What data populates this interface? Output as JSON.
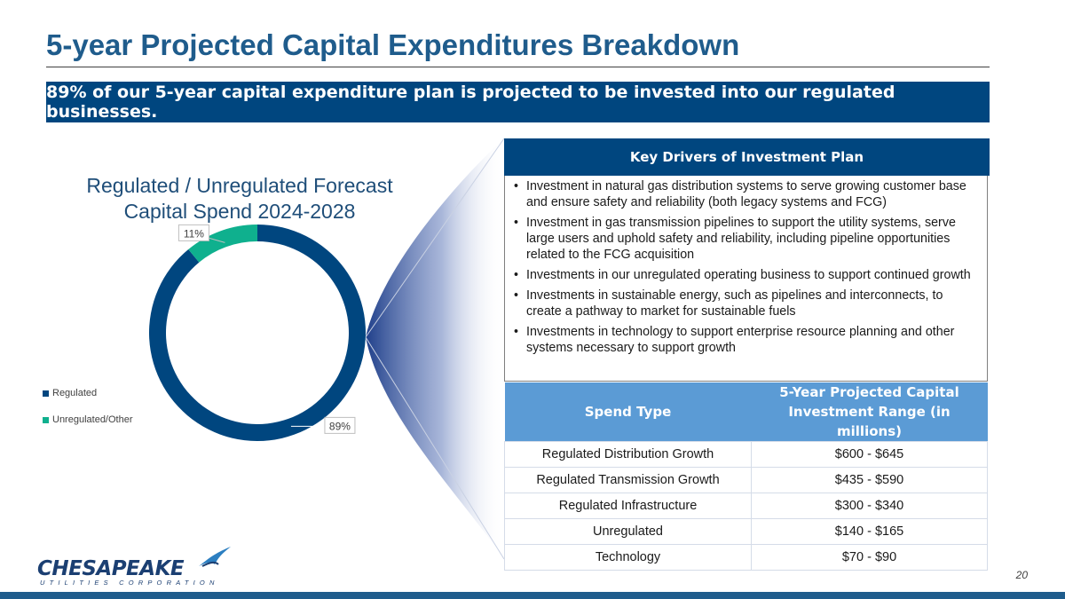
{
  "slide": {
    "title": "5-year Projected Capital Expenditures Breakdown",
    "banner": "89% of our 5-year capital expenditure plan is projected to be invested into our regulated businesses.",
    "page_number": "20"
  },
  "chart_data": {
    "type": "pie",
    "donut": true,
    "title": "Regulated / Unregulated Forecast Capital Spend 2024-2028",
    "title_lines": [
      "Regulated / Unregulated Forecast",
      "Capital Spend 2024-2028"
    ],
    "categories": [
      "Regulated",
      "Unregulated/Other"
    ],
    "values": [
      89,
      11
    ],
    "data_labels": [
      "89%",
      "11%"
    ],
    "colors": [
      "#00467f",
      "#0fb08e"
    ],
    "legend_position": "left"
  },
  "drivers": {
    "header": "Key Drivers of Investment Plan",
    "items": [
      "Investment in natural gas distribution systems to serve growing customer base and ensure safety and reliability (both legacy systems and FCG)",
      "Investment in gas transmission pipelines to support the utility systems, serve large users and uphold safety and reliability, including pipeline opportunities related to the FCG acquisition",
      "Investments in our unregulated operating business to support continued growth",
      "Investments in sustainable energy, such as pipelines and interconnects, to create a pathway to market for sustainable fuels",
      "Investments in technology to support enterprise resource planning and other systems necessary to support growth"
    ]
  },
  "spend_table": {
    "headers": [
      "Spend Type",
      "5-Year Projected Capital Investment Range (in millions)"
    ],
    "rows": [
      {
        "type": "Regulated Distribution Growth",
        "range": "$600 - $645"
      },
      {
        "type": "Regulated Transmission Growth",
        "range": "$435 - $590"
      },
      {
        "type": "Regulated Infrastructure",
        "range": "$300 - $340"
      },
      {
        "type": "Unregulated",
        "range": "$140 - $165"
      },
      {
        "type": "Technology",
        "range": "$70 - $90"
      }
    ]
  },
  "logo": {
    "name": "CHESAPEAKE",
    "tagline": "UTILITIES CORPORATION"
  },
  "colors": {
    "title": "#1f5c8c",
    "banner": "#00467f",
    "table_header": "#5b9bd5"
  }
}
